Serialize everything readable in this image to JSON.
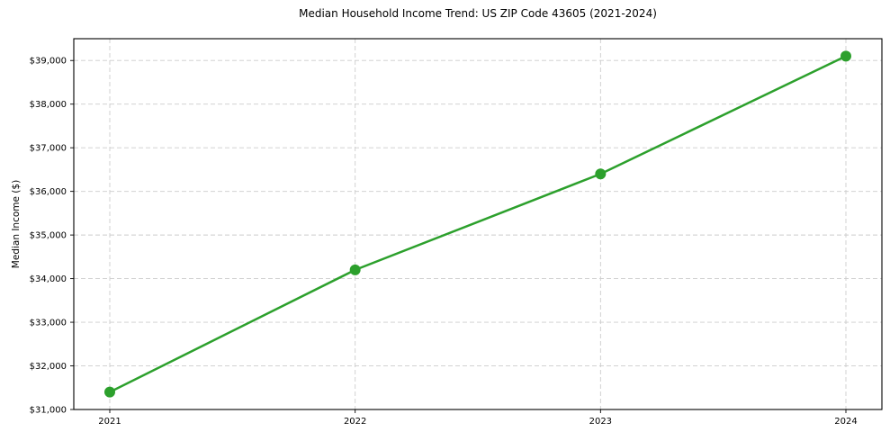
{
  "chart_data": {
    "type": "line",
    "title": "Median Household Income Trend: US ZIP Code 43605 (2021-2024)",
    "xlabel": "",
    "ylabel": "Median Income ($)",
    "categories": [
      "2021",
      "2022",
      "2023",
      "2024"
    ],
    "series": [
      {
        "name": "Median Household Income",
        "values": [
          31400,
          34200,
          36400,
          39100
        ]
      }
    ],
    "ylim": [
      31000,
      39500
    ],
    "y_ticks": [
      31000,
      32000,
      33000,
      34000,
      35000,
      36000,
      37000,
      38000,
      39000
    ],
    "y_tick_labels": [
      "$31,000",
      "$32,000",
      "$33,000",
      "$34,000",
      "$35,000",
      "$36,000",
      "$37,000",
      "$38,000",
      "$39,000"
    ],
    "grid": true,
    "grid_style": "dashed",
    "legend": "none",
    "colors": {
      "line": "#2ca02c",
      "marker": "#2ca02c",
      "grid": "#cccccc",
      "spine": "#000000",
      "text": "#000000",
      "background": "#ffffff"
    }
  }
}
